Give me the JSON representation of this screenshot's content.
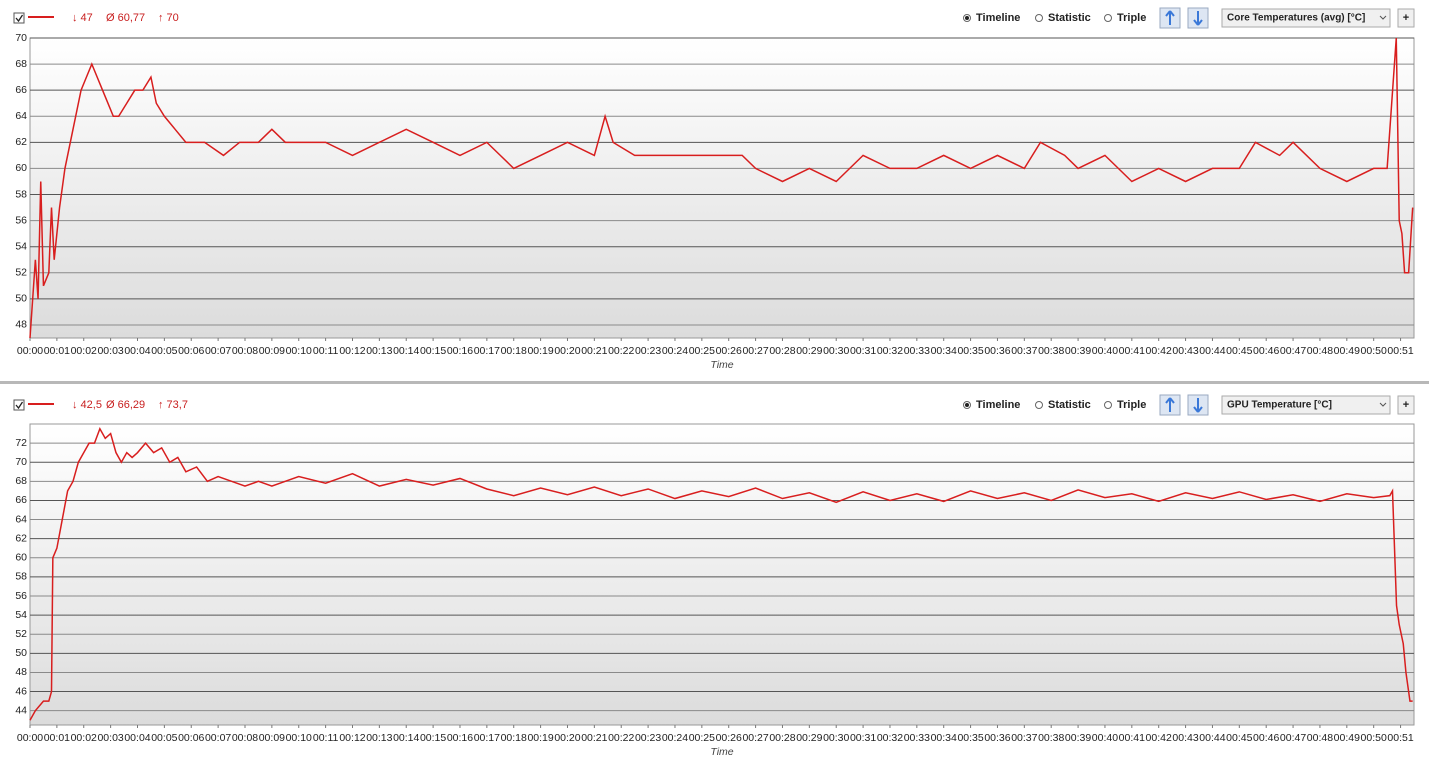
{
  "chart_data": [
    {
      "type": "line",
      "stats": [
        "↓ 47",
        "Ø 60,77",
        "↑ 70"
      ],
      "views": [
        "Timeline",
        "Statistic",
        "Triple"
      ],
      "sensor": "Core Temperatures (avg) [°C]",
      "add_button": "+",
      "xlabel": "Time",
      "xlim": [
        0,
        51.5
      ],
      "ylim": [
        47,
        70
      ],
      "yticks": [
        48,
        50,
        52,
        54,
        56,
        58,
        60,
        62,
        64,
        66,
        68,
        70
      ],
      "grid": true,
      "xticks": [
        {
          "value": 0,
          "label": "00:00"
        },
        {
          "value": 1,
          "label": "00:01"
        },
        {
          "value": 2,
          "label": "00:02"
        },
        {
          "value": 3,
          "label": "00:03"
        },
        {
          "value": 4,
          "label": "00:04"
        },
        {
          "value": 5,
          "label": "00:05"
        },
        {
          "value": 6,
          "label": "00:06"
        },
        {
          "value": 7,
          "label": "00:07"
        },
        {
          "value": 8,
          "label": "00:08"
        },
        {
          "value": 9,
          "label": "00:09"
        },
        {
          "value": 10,
          "label": "00:10"
        },
        {
          "value": 11,
          "label": "00:11"
        },
        {
          "value": 12,
          "label": "00:12"
        },
        {
          "value": 13,
          "label": "00:13"
        },
        {
          "value": 14,
          "label": "00:14"
        },
        {
          "value": 15,
          "label": "00:15"
        },
        {
          "value": 16,
          "label": "00:16"
        },
        {
          "value": 17,
          "label": "00:17"
        },
        {
          "value": 18,
          "label": "00:18"
        },
        {
          "value": 19,
          "label": "00:19"
        },
        {
          "value": 20,
          "label": "00:20"
        },
        {
          "value": 21,
          "label": "00:21"
        },
        {
          "value": 22,
          "label": "00:22"
        },
        {
          "value": 23,
          "label": "00:23"
        },
        {
          "value": 24,
          "label": "00:24"
        },
        {
          "value": 25,
          "label": "00:25"
        },
        {
          "value": 26,
          "label": "00:26"
        },
        {
          "value": 27,
          "label": "00:27"
        },
        {
          "value": 28,
          "label": "00:28"
        },
        {
          "value": 29,
          "label": "00:29"
        },
        {
          "value": 30,
          "label": "00:30"
        },
        {
          "value": 31,
          "label": "00:31"
        },
        {
          "value": 32,
          "label": "00:32"
        },
        {
          "value": 33,
          "label": "00:33"
        },
        {
          "value": 34,
          "label": "00:34"
        },
        {
          "value": 35,
          "label": "00:35"
        },
        {
          "value": 36,
          "label": "00:36"
        },
        {
          "value": 37,
          "label": "00:37"
        },
        {
          "value": 38,
          "label": "00:38"
        },
        {
          "value": 39,
          "label": "00:39"
        },
        {
          "value": 40,
          "label": "00:40"
        },
        {
          "value": 41,
          "label": "00:41"
        },
        {
          "value": 42,
          "label": "00:42"
        },
        {
          "value": 43,
          "label": "00:43"
        },
        {
          "value": 44,
          "label": "00:44"
        },
        {
          "value": 45,
          "label": "00:45"
        },
        {
          "value": 46,
          "label": "00:46"
        },
        {
          "value": 47,
          "label": "00:47"
        },
        {
          "value": 48,
          "label": "00:48"
        },
        {
          "value": 49,
          "label": "00:49"
        },
        {
          "value": 50,
          "label": "00:50"
        },
        {
          "value": 51,
          "label": "00:51"
        }
      ],
      "x": [
        0,
        0.2,
        0.3,
        0.4,
        0.5,
        0.7,
        0.8,
        0.9,
        1.1,
        1.3,
        1.6,
        1.9,
        2.1,
        2.3,
        2.5,
        2.7,
        2.9,
        3.1,
        3.3,
        3.6,
        3.9,
        4.2,
        4.5,
        4.7,
        5.0,
        5.4,
        5.8,
        6.5,
        7.2,
        7.8,
        8.5,
        9,
        9.5,
        10,
        11,
        12,
        13,
        14,
        15,
        16,
        17,
        17.5,
        18,
        19,
        20,
        21,
        21.4,
        21.7,
        22.5,
        23.5,
        24.5,
        25.5,
        26.5,
        27,
        28,
        29,
        30,
        31,
        32,
        33,
        34,
        35,
        36,
        37,
        37.6,
        38.5,
        39,
        40,
        41,
        42,
        43,
        44,
        45,
        45.6,
        46.5,
        47,
        48,
        49,
        50,
        50.5,
        50.84,
        50.95,
        51.05,
        51.15,
        51.3,
        51.45
      ],
      "series": [
        {
          "color": "#d81e1e",
          "values": [
            47,
            53,
            50,
            59,
            51,
            52,
            57,
            53,
            57,
            60,
            63,
            66,
            67,
            68,
            67,
            66,
            65,
            64,
            64,
            65,
            66,
            66,
            67,
            65,
            64,
            63,
            62,
            62,
            61,
            62,
            62,
            63,
            62,
            62,
            62,
            61,
            62,
            63,
            62,
            61,
            62,
            61,
            60,
            61,
            62,
            61,
            64,
            62,
            61,
            61,
            61,
            61,
            61,
            60,
            59,
            60,
            59,
            61,
            60,
            60,
            61,
            60,
            61,
            60,
            62,
            61,
            60,
            61,
            59,
            60,
            59,
            60,
            60,
            62,
            61,
            62,
            60,
            59,
            60,
            60,
            70,
            56,
            55,
            52,
            52,
            57
          ]
        }
      ]
    },
    {
      "type": "line",
      "stats": [
        "↓ 42,5",
        "Ø 66,29",
        "↑ 73,7"
      ],
      "views": [
        "Timeline",
        "Statistic",
        "Triple"
      ],
      "sensor": "GPU Temperature [°C]",
      "add_button": "+",
      "xlabel": "Time",
      "xlim": [
        0,
        51.5
      ],
      "ylim": [
        42.5,
        74
      ],
      "yticks": [
        44,
        46,
        48,
        50,
        52,
        54,
        56,
        58,
        60,
        62,
        64,
        66,
        68,
        70,
        72
      ],
      "grid": true,
      "xticks": [
        {
          "value": 0,
          "label": "00:00"
        },
        {
          "value": 1,
          "label": "00:01"
        },
        {
          "value": 2,
          "label": "00:02"
        },
        {
          "value": 3,
          "label": "00:03"
        },
        {
          "value": 4,
          "label": "00:04"
        },
        {
          "value": 5,
          "label": "00:05"
        },
        {
          "value": 6,
          "label": "00:06"
        },
        {
          "value": 7,
          "label": "00:07"
        },
        {
          "value": 8,
          "label": "00:08"
        },
        {
          "value": 9,
          "label": "00:09"
        },
        {
          "value": 10,
          "label": "00:10"
        },
        {
          "value": 11,
          "label": "00:11"
        },
        {
          "value": 12,
          "label": "00:12"
        },
        {
          "value": 13,
          "label": "00:13"
        },
        {
          "value": 14,
          "label": "00:14"
        },
        {
          "value": 15,
          "label": "00:15"
        },
        {
          "value": 16,
          "label": "00:16"
        },
        {
          "value": 17,
          "label": "00:17"
        },
        {
          "value": 18,
          "label": "00:18"
        },
        {
          "value": 19,
          "label": "00:19"
        },
        {
          "value": 20,
          "label": "00:20"
        },
        {
          "value": 21,
          "label": "00:21"
        },
        {
          "value": 22,
          "label": "00:22"
        },
        {
          "value": 23,
          "label": "00:23"
        },
        {
          "value": 24,
          "label": "00:24"
        },
        {
          "value": 25,
          "label": "00:25"
        },
        {
          "value": 26,
          "label": "00:26"
        },
        {
          "value": 27,
          "label": "00:27"
        },
        {
          "value": 28,
          "label": "00:28"
        },
        {
          "value": 29,
          "label": "00:29"
        },
        {
          "value": 30,
          "label": "00:30"
        },
        {
          "value": 31,
          "label": "00:31"
        },
        {
          "value": 32,
          "label": "00:32"
        },
        {
          "value": 33,
          "label": "00:33"
        },
        {
          "value": 34,
          "label": "00:34"
        },
        {
          "value": 35,
          "label": "00:35"
        },
        {
          "value": 36,
          "label": "00:36"
        },
        {
          "value": 37,
          "label": "00:37"
        },
        {
          "value": 38,
          "label": "00:38"
        },
        {
          "value": 39,
          "label": "00:39"
        },
        {
          "value": 40,
          "label": "00:40"
        },
        {
          "value": 41,
          "label": "00:41"
        },
        {
          "value": 42,
          "label": "00:42"
        },
        {
          "value": 43,
          "label": "00:43"
        },
        {
          "value": 44,
          "label": "00:44"
        },
        {
          "value": 45,
          "label": "00:45"
        },
        {
          "value": 46,
          "label": "00:46"
        },
        {
          "value": 47,
          "label": "00:47"
        },
        {
          "value": 48,
          "label": "00:48"
        },
        {
          "value": 49,
          "label": "00:49"
        },
        {
          "value": 50,
          "label": "00:50"
        },
        {
          "value": 51,
          "label": "00:51"
        }
      ],
      "x": [
        0,
        0.2,
        0.5,
        0.7,
        0.8,
        0.85,
        1.0,
        1.2,
        1.4,
        1.6,
        1.8,
        2.0,
        2.2,
        2.4,
        2.6,
        2.8,
        3.0,
        3.2,
        3.4,
        3.6,
        3.8,
        4.0,
        4.3,
        4.6,
        4.9,
        5.2,
        5.5,
        5.8,
        6.2,
        6.6,
        7.0,
        7.5,
        8.0,
        8.5,
        9,
        10,
        11,
        12,
        13,
        14,
        15,
        16,
        17,
        18,
        19,
        20,
        21,
        22,
        23,
        24,
        25,
        26,
        27,
        28,
        29,
        30,
        31,
        32,
        33,
        34,
        35,
        36,
        37,
        38,
        39,
        40,
        41,
        42,
        43,
        44,
        45,
        46,
        47,
        48,
        49,
        50,
        50.6,
        50.7,
        50.85,
        50.95,
        51.1,
        51.2,
        51.35,
        51.45
      ],
      "series": [
        {
          "color": "#d81e1e",
          "values": [
            43,
            44,
            45,
            45,
            46,
            60,
            61,
            64,
            67,
            68,
            70,
            71,
            72,
            72,
            73.5,
            72.5,
            73,
            71,
            70,
            71,
            70.5,
            71,
            72,
            71,
            71.5,
            70,
            70.5,
            69,
            69.5,
            68,
            68.5,
            68,
            67.5,
            68,
            67.5,
            68.5,
            67.8,
            68.8,
            67.5,
            68.2,
            67.6,
            68.3,
            67.2,
            66.5,
            67.3,
            66.6,
            67.4,
            66.5,
            67.2,
            66.2,
            67,
            66.4,
            67.3,
            66.2,
            66.8,
            65.8,
            66.9,
            66,
            66.7,
            65.9,
            67,
            66.2,
            66.8,
            66,
            67.1,
            66.3,
            66.7,
            65.9,
            66.8,
            66.2,
            66.9,
            66.1,
            66.6,
            65.9,
            66.7,
            66.3,
            66.5,
            67,
            55,
            53,
            51,
            48,
            45,
            45
          ]
        }
      ]
    }
  ]
}
